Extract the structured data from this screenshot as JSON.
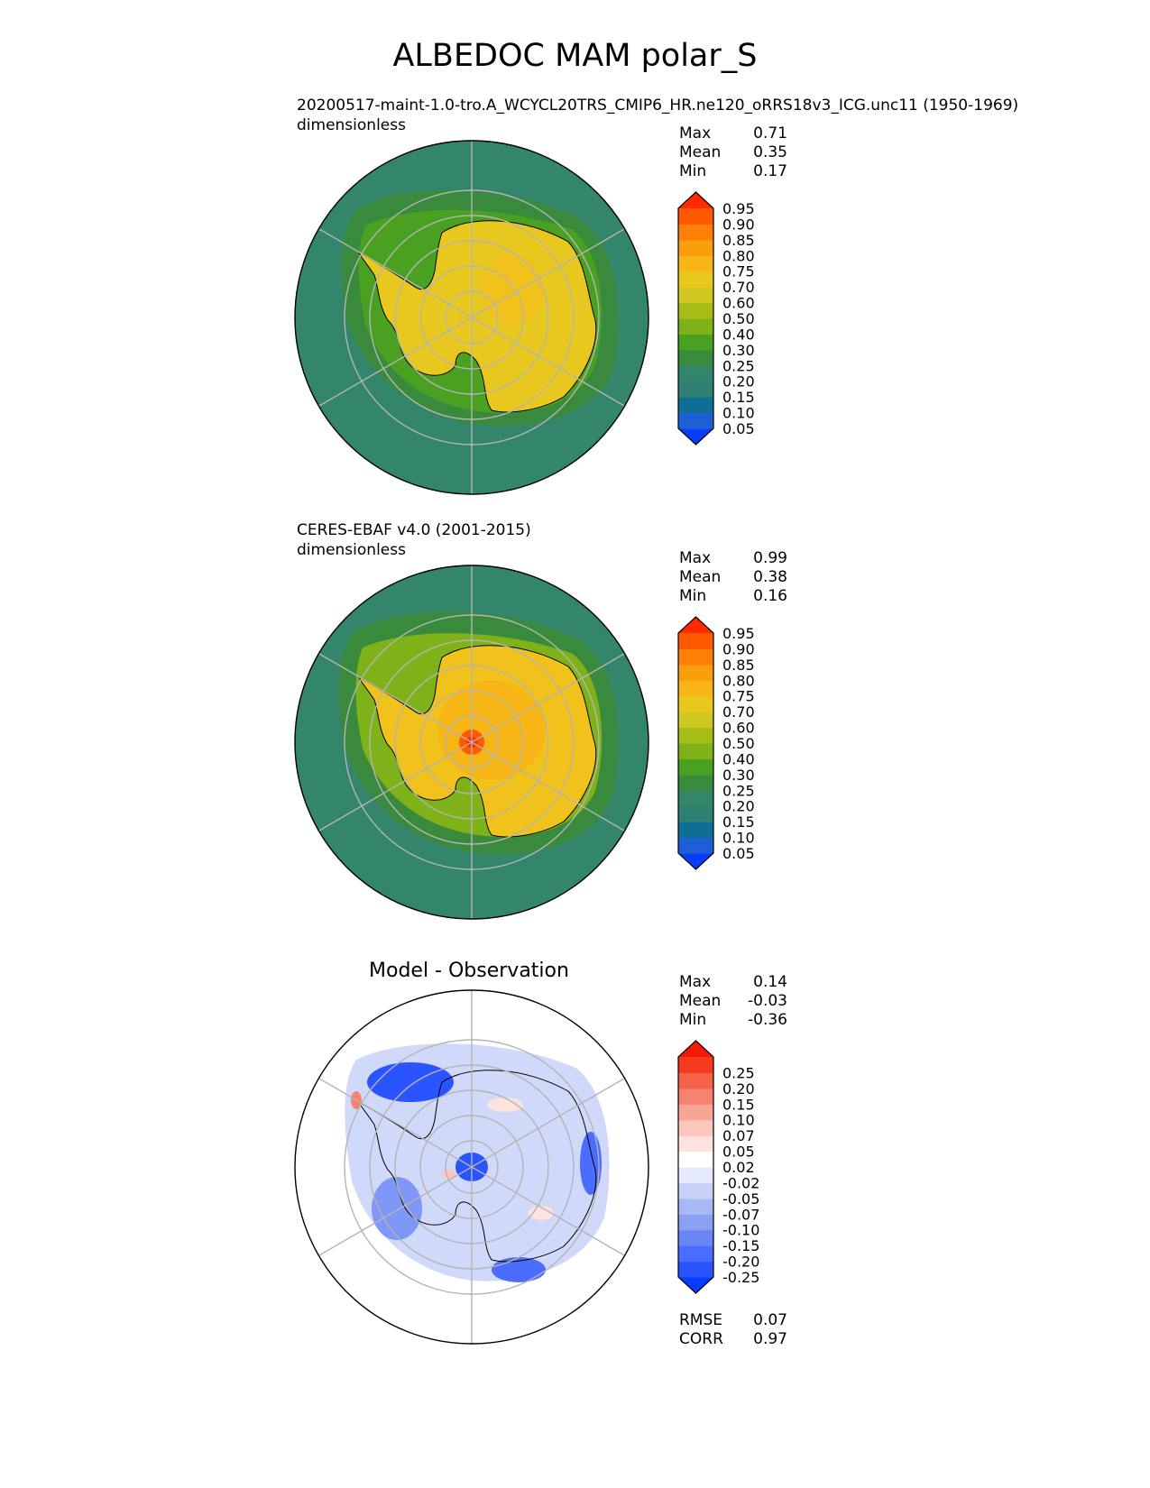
{
  "title": "ALBEDOC MAM polar_S",
  "panels": [
    {
      "title_line1": "20200517-maint-1.0-tro.A_WCYCL20TRS_CMIP6_HR.ne120_oRRS18v3_ICG.unc11 (1950-1969)",
      "title_line2": "dimensionless",
      "stats": [
        {
          "label": "Max",
          "value": "0.71"
        },
        {
          "label": "Mean",
          "value": "0.35"
        },
        {
          "label": "Min",
          "value": "0.17"
        }
      ]
    },
    {
      "title_line1": "CERES-EBAF v4.0 (2001-2015)",
      "title_line2": "dimensionless",
      "stats": [
        {
          "label": "Max",
          "value": "0.99"
        },
        {
          "label": "Mean",
          "value": "0.38"
        },
        {
          "label": "Min",
          "value": "0.16"
        }
      ]
    },
    {
      "title": "Model - Observation",
      "stats": [
        {
          "label": "Max",
          "value": "0.14"
        },
        {
          "label": "Mean",
          "value": "-0.03"
        },
        {
          "label": "Min",
          "value": "-0.36"
        }
      ],
      "metrics": [
        {
          "label": "RMSE",
          "value": "0.07"
        },
        {
          "label": "CORR",
          "value": "0.97"
        }
      ]
    }
  ],
  "chart_data": [
    {
      "type": "heatmap",
      "projection": "south-polar-stereographic",
      "colorbar_levels": [
        "0.05",
        "0.10",
        "0.15",
        "0.20",
        "0.25",
        "0.30",
        "0.40",
        "0.50",
        "0.60",
        "0.70",
        "0.75",
        "0.80",
        "0.85",
        "0.90",
        "0.95"
      ],
      "colorbar_colors": [
        "#0a3cff",
        "#1f5fd6",
        "#0e6e96",
        "#2f7f73",
        "#33856b",
        "#3a8a3d",
        "#4aa020",
        "#7fb219",
        "#a6bd17",
        "#cfc820",
        "#e9c81c",
        "#f7b516",
        "#fb9e0d",
        "#fd7f05",
        "#ff5a00",
        "#ff2a00"
      ],
      "field_range": {
        "min": 0.17,
        "mean": 0.35,
        "max": 0.71
      }
    },
    {
      "type": "heatmap",
      "projection": "south-polar-stereographic",
      "colorbar_levels": [
        "0.05",
        "0.10",
        "0.15",
        "0.20",
        "0.25",
        "0.30",
        "0.40",
        "0.50",
        "0.60",
        "0.70",
        "0.75",
        "0.80",
        "0.85",
        "0.90",
        "0.95"
      ],
      "colorbar_colors": [
        "#0a3cff",
        "#1f5fd6",
        "#0e6e96",
        "#2f7f73",
        "#33856b",
        "#3a8a3d",
        "#4aa020",
        "#7fb219",
        "#a6bd17",
        "#cfc820",
        "#e9c81c",
        "#f7b516",
        "#fb9e0d",
        "#fd7f05",
        "#ff5a00",
        "#ff2a00"
      ],
      "field_range": {
        "min": 0.16,
        "mean": 0.38,
        "max": 0.99
      }
    },
    {
      "type": "heatmap",
      "projection": "south-polar-stereographic",
      "colorbar_levels": [
        "-0.25",
        "-0.20",
        "-0.15",
        "-0.10",
        "-0.07",
        "-0.05",
        "-0.02",
        "0.02",
        "0.05",
        "0.07",
        "0.10",
        "0.15",
        "0.20",
        "0.25"
      ],
      "colorbar_colors": [
        "#0a3cff",
        "#2a54ff",
        "#4a6cff",
        "#6a86f5",
        "#8aa0f2",
        "#a8b8f4",
        "#c8d2f8",
        "#e4e9fc",
        "#ffffff",
        "#fde2de",
        "#fbc6bd",
        "#f8a595",
        "#f5836f",
        "#f4624a",
        "#f53a20",
        "#f51a05"
      ],
      "field_range": {
        "min": -0.36,
        "mean": -0.03,
        "max": 0.14
      }
    }
  ]
}
